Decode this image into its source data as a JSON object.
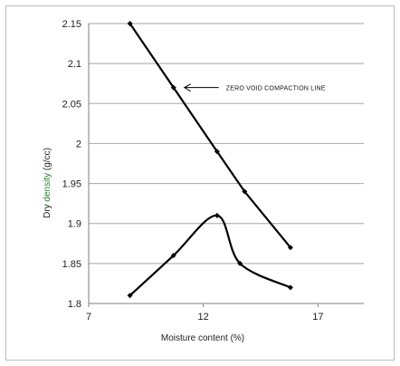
{
  "chart_data": {
    "type": "scatter",
    "title": "",
    "xlabel": "Moisture content (%)",
    "ylabel_parts": [
      "Dry ",
      "density ",
      "(g/cc)"
    ],
    "xlim": [
      7,
      19
    ],
    "ylim": [
      1.8,
      2.15
    ],
    "xticks": [
      7,
      12,
      17
    ],
    "yticks": [
      1.8,
      1.85,
      1.9,
      1.95,
      2,
      2.05,
      2.1,
      2.15
    ],
    "grid": "horizontal",
    "series": [
      {
        "line": "straight",
        "x": [
          8.8,
          10.7,
          12.6,
          13.8,
          15.8
        ],
        "y": [
          2.15,
          2.07,
          1.99,
          1.94,
          1.87
        ]
      },
      {
        "line": "smooth",
        "x": [
          8.8,
          10.7,
          12.6,
          13.6,
          15.8
        ],
        "y": [
          1.81,
          1.86,
          1.91,
          1.85,
          1.82
        ]
      }
    ],
    "annotations": [
      {
        "text": "ZERO VOID COMPACTION LINE",
        "target_x": 10.7,
        "target_y": 2.07
      }
    ],
    "colors": {
      "line": "#000000",
      "grid": "#a6a6a6",
      "ylabel_highlight": "#2e7d32"
    }
  }
}
